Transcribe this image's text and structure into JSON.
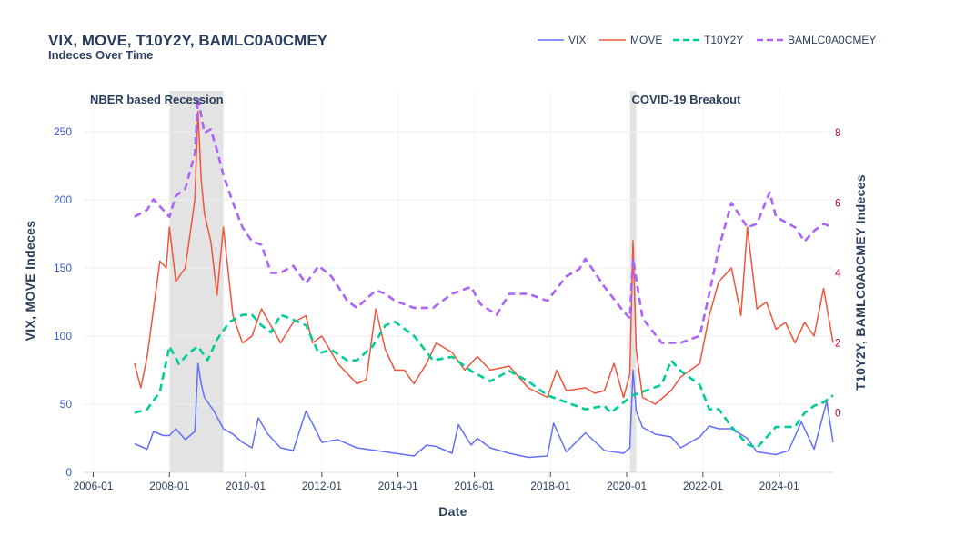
{
  "chart_data": {
    "type": "line",
    "title": "VIX, MOVE, T10Y2Y, BAMLC0A0CMEY",
    "subtitle": "Indeces Over Time",
    "xlabel": "Date",
    "ylabel_left": "VIX, MOVE Indeces",
    "ylabel_right": "T10Y2Y, BAMLC0A0CMEY Indeces",
    "x_ticks": [
      "2006-01",
      "2008-01",
      "2010-01",
      "2012-01",
      "2014-01",
      "2016-01",
      "2018-01",
      "2020-01",
      "2022-01",
      "2024-01"
    ],
    "y_left_ticks": [
      0,
      50,
      100,
      150,
      200,
      250
    ],
    "y_right_ticks": [
      0,
      2,
      4,
      6,
      8
    ],
    "xlim": [
      "2005-10",
      "2025-06"
    ],
    "ylim_left": [
      0,
      280
    ],
    "ylim_right": [
      -1.7,
      9.2
    ],
    "grid": true,
    "legend_position": "top-right",
    "colors": {
      "left_tick": "#3b5bd4",
      "right_tick": "#c0002a",
      "shade": "#e3e3e3"
    },
    "shaded_regions": [
      {
        "label": "NBER based Recession",
        "x0": "2008-01",
        "x1": "2009-06"
      },
      {
        "label": "COVID-19 Breakout",
        "x0": "2020-02",
        "x1": "2020-04"
      }
    ],
    "series": [
      {
        "name": "VIX",
        "axis": "left",
        "color": "#636efa",
        "dash": "solid",
        "x": [
          "2007-02",
          "2007-06",
          "2007-08",
          "2007-11",
          "2008-01",
          "2008-03",
          "2008-06",
          "2008-09",
          "2008-10",
          "2008-11",
          "2008-12",
          "2009-03",
          "2009-06",
          "2009-09",
          "2009-12",
          "2010-03",
          "2010-05",
          "2010-08",
          "2010-12",
          "2011-04",
          "2011-08",
          "2011-10",
          "2012-01",
          "2012-06",
          "2012-12",
          "2013-06",
          "2013-12",
          "2014-06",
          "2014-10",
          "2015-01",
          "2015-06",
          "2015-08",
          "2015-12",
          "2016-02",
          "2016-06",
          "2016-12",
          "2017-06",
          "2017-12",
          "2018-02",
          "2018-06",
          "2018-12",
          "2019-06",
          "2019-12",
          "2020-02",
          "2020-03",
          "2020-04",
          "2020-06",
          "2020-10",
          "2021-03",
          "2021-06",
          "2021-12",
          "2022-03",
          "2022-06",
          "2022-10",
          "2023-03",
          "2023-06",
          "2023-12",
          "2024-04",
          "2024-08",
          "2024-12",
          "2025-04",
          "2025-06"
        ],
        "values": [
          21,
          17,
          30,
          27,
          27,
          32,
          24,
          30,
          80,
          65,
          55,
          45,
          32,
          28,
          22,
          18,
          40,
          28,
          18,
          16,
          45,
          36,
          22,
          24,
          18,
          16,
          14,
          12,
          20,
          19,
          14,
          35,
          20,
          25,
          18,
          14,
          11,
          12,
          36,
          15,
          29,
          16,
          14,
          18,
          75,
          45,
          33,
          28,
          26,
          18,
          26,
          34,
          32,
          32,
          25,
          15,
          13,
          16,
          37,
          17,
          52,
          22
        ]
      },
      {
        "name": "MOVE",
        "axis": "left",
        "color": "#ef553b",
        "dash": "solid",
        "x": [
          "2007-02",
          "2007-04",
          "2007-06",
          "2007-08",
          "2007-10",
          "2007-12",
          "2008-01",
          "2008-03",
          "2008-06",
          "2008-09",
          "2008-10",
          "2008-11",
          "2008-12",
          "2009-02",
          "2009-04",
          "2009-06",
          "2009-09",
          "2009-12",
          "2010-03",
          "2010-06",
          "2010-12",
          "2011-04",
          "2011-08",
          "2011-10",
          "2012-01",
          "2012-06",
          "2012-12",
          "2013-03",
          "2013-06",
          "2013-09",
          "2013-12",
          "2014-03",
          "2014-06",
          "2014-10",
          "2015-01",
          "2015-06",
          "2015-10",
          "2016-02",
          "2016-06",
          "2016-12",
          "2017-06",
          "2017-12",
          "2018-03",
          "2018-06",
          "2018-12",
          "2019-03",
          "2019-06",
          "2019-09",
          "2019-12",
          "2020-02",
          "2020-03",
          "2020-04",
          "2020-06",
          "2020-10",
          "2021-03",
          "2021-06",
          "2021-12",
          "2022-03",
          "2022-06",
          "2022-10",
          "2023-01",
          "2023-03",
          "2023-06",
          "2023-09",
          "2023-12",
          "2024-03",
          "2024-06",
          "2024-09",
          "2024-12",
          "2025-03",
          "2025-06"
        ],
        "values": [
          80,
          62,
          85,
          120,
          155,
          150,
          180,
          140,
          150,
          200,
          265,
          215,
          190,
          170,
          130,
          180,
          115,
          95,
          100,
          120,
          95,
          110,
          115,
          95,
          100,
          80,
          65,
          68,
          120,
          90,
          75,
          75,
          65,
          80,
          95,
          88,
          75,
          85,
          75,
          78,
          62,
          55,
          75,
          60,
          62,
          58,
          60,
          80,
          55,
          72,
          170,
          90,
          55,
          50,
          60,
          70,
          80,
          115,
          140,
          150,
          115,
          180,
          120,
          125,
          105,
          110,
          95,
          110,
          100,
          135,
          95
        ]
      },
      {
        "name": "T10Y2Y",
        "axis": "right",
        "color": "#00cc96",
        "dash": "dash",
        "x": [
          "2007-02",
          "2007-06",
          "2007-10",
          "2008-01",
          "2008-04",
          "2008-07",
          "2008-10",
          "2009-01",
          "2009-04",
          "2009-08",
          "2009-12",
          "2010-03",
          "2010-06",
          "2010-09",
          "2010-12",
          "2011-03",
          "2011-08",
          "2011-12",
          "2012-04",
          "2012-09",
          "2012-12",
          "2013-05",
          "2013-09",
          "2013-12",
          "2014-06",
          "2014-12",
          "2015-06",
          "2015-12",
          "2016-06",
          "2016-12",
          "2017-06",
          "2017-12",
          "2018-06",
          "2018-12",
          "2019-06",
          "2019-08",
          "2019-12",
          "2020-03",
          "2020-06",
          "2020-12",
          "2021-03",
          "2021-06",
          "2021-12",
          "2022-03",
          "2022-06",
          "2022-10",
          "2023-03",
          "2023-06",
          "2023-12",
          "2024-06",
          "2024-09",
          "2024-12",
          "2025-03",
          "2025-06"
        ],
        "values": [
          0.0,
          0.1,
          0.6,
          1.9,
          1.4,
          1.7,
          1.9,
          1.5,
          2.1,
          2.6,
          2.8,
          2.8,
          2.5,
          2.3,
          2.8,
          2.7,
          2.5,
          1.7,
          1.8,
          1.5,
          1.5,
          1.9,
          2.5,
          2.6,
          2.2,
          1.5,
          1.6,
          1.2,
          0.9,
          1.2,
          0.9,
          0.5,
          0.3,
          0.1,
          0.2,
          0.0,
          0.3,
          0.5,
          0.6,
          0.8,
          1.5,
          1.2,
          0.8,
          0.1,
          0.1,
          -0.4,
          -0.9,
          -1.0,
          -0.4,
          -0.4,
          0.0,
          0.2,
          0.3,
          0.5
        ]
      },
      {
        "name": "BAMLC0A0CMEY",
        "axis": "right",
        "color": "#ab63fa",
        "dash": "dash",
        "x": [
          "2007-02",
          "2007-06",
          "2007-08",
          "2007-10",
          "2008-01",
          "2008-03",
          "2008-06",
          "2008-09",
          "2008-10",
          "2008-11",
          "2008-12",
          "2009-02",
          "2009-04",
          "2009-06",
          "2009-09",
          "2009-12",
          "2010-03",
          "2010-06",
          "2010-09",
          "2010-12",
          "2011-04",
          "2011-08",
          "2011-12",
          "2012-04",
          "2012-09",
          "2012-12",
          "2013-06",
          "2013-09",
          "2013-12",
          "2014-06",
          "2014-12",
          "2015-06",
          "2015-12",
          "2016-03",
          "2016-08",
          "2016-12",
          "2017-06",
          "2017-12",
          "2018-06",
          "2018-10",
          "2018-12",
          "2019-06",
          "2019-12",
          "2020-02",
          "2020-03",
          "2020-06",
          "2020-12",
          "2021-06",
          "2021-12",
          "2022-03",
          "2022-06",
          "2022-10",
          "2023-03",
          "2023-06",
          "2023-10",
          "2023-12",
          "2024-06",
          "2024-09",
          "2024-12",
          "2025-03",
          "2025-06"
        ],
        "values": [
          5.6,
          5.8,
          6.1,
          5.9,
          5.6,
          6.2,
          6.4,
          7.4,
          9.0,
          8.5,
          8.0,
          8.1,
          7.5,
          6.8,
          6.0,
          5.3,
          4.9,
          4.8,
          4.0,
          4.0,
          4.2,
          3.7,
          4.2,
          3.9,
          3.2,
          3.0,
          3.5,
          3.4,
          3.2,
          3.0,
          3.0,
          3.4,
          3.6,
          3.1,
          2.8,
          3.4,
          3.4,
          3.2,
          3.9,
          4.1,
          4.4,
          3.6,
          2.9,
          2.7,
          4.4,
          2.7,
          2.0,
          2.0,
          2.2,
          3.4,
          4.7,
          6.0,
          5.3,
          5.4,
          6.3,
          5.6,
          5.3,
          4.9,
          5.2,
          5.4,
          5.3
        ]
      }
    ]
  }
}
